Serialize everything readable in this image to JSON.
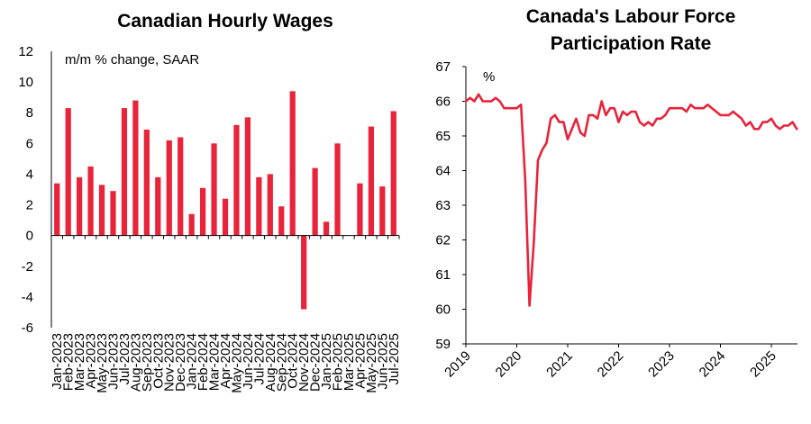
{
  "chart_data": [
    {
      "type": "bar",
      "title": "Canadian Hourly Wages",
      "annotation": "m/m % change, SAAR",
      "color": "#e8233a",
      "ylim": [
        -6,
        12
      ],
      "yticks": [
        "-6",
        "-4",
        "-2",
        "0",
        "2",
        "4",
        "6",
        "8",
        "10",
        "12"
      ],
      "categories": [
        "Jan-2023",
        "Feb-2023",
        "Mar-2023",
        "Apr-2023",
        "May-2023",
        "Jun-2023",
        "Jul-2023",
        "Aug-2023",
        "Sep-2023",
        "Oct-2023",
        "Nov-2023",
        "Dec-2023",
        "Jan-2024",
        "Feb-2024",
        "Mar-2024",
        "Apr-2024",
        "May-2024",
        "Jun-2024",
        "Jul-2024",
        "Aug-2024",
        "Sep-2024",
        "Oct-2024",
        "Nov-2024",
        "Dec-2024",
        "Jan-2025",
        "Feb-2025",
        "Mar-2025",
        "Apr-2025",
        "May-2025",
        "Jun-2025",
        "Jul-2025"
      ],
      "values": [
        3.4,
        8.3,
        3.8,
        4.5,
        3.3,
        2.9,
        8.3,
        8.8,
        6.9,
        3.8,
        6.2,
        6.4,
        1.4,
        3.1,
        6.0,
        2.4,
        7.2,
        7.7,
        3.8,
        4.0,
        1.9,
        9.4,
        -4.8,
        4.4,
        0.9,
        6.0,
        0.0,
        3.4,
        7.1,
        3.2,
        8.1
      ],
      "grid": false
    },
    {
      "type": "line",
      "title": "Canada's Labour Force Participation Rate",
      "title_lines": [
        "Canada's Labour Force",
        "Participation Rate"
      ],
      "unit_label": "%",
      "color": "#e8233a",
      "ylim": [
        59,
        67
      ],
      "yticks": [
        "59",
        "60",
        "61",
        "62",
        "63",
        "64",
        "65",
        "66",
        "67"
      ],
      "xticks": [
        "2019",
        "2020",
        "2021",
        "2022",
        "2023",
        "2024",
        "2025"
      ],
      "x_start": "2019-01",
      "x": [
        "2019-01",
        "2019-02",
        "2019-03",
        "2019-04",
        "2019-05",
        "2019-06",
        "2019-07",
        "2019-08",
        "2019-09",
        "2019-10",
        "2019-11",
        "2019-12",
        "2020-01",
        "2020-02",
        "2020-03",
        "2020-04",
        "2020-05",
        "2020-06",
        "2020-07",
        "2020-08",
        "2020-09",
        "2020-10",
        "2020-11",
        "2020-12",
        "2021-01",
        "2021-02",
        "2021-03",
        "2021-04",
        "2021-05",
        "2021-06",
        "2021-07",
        "2021-08",
        "2021-09",
        "2021-10",
        "2021-11",
        "2021-12",
        "2022-01",
        "2022-02",
        "2022-03",
        "2022-04",
        "2022-05",
        "2022-06",
        "2022-07",
        "2022-08",
        "2022-09",
        "2022-10",
        "2022-11",
        "2022-12",
        "2023-01",
        "2023-02",
        "2023-03",
        "2023-04",
        "2023-05",
        "2023-06",
        "2023-07",
        "2023-08",
        "2023-09",
        "2023-10",
        "2023-11",
        "2023-12",
        "2024-01",
        "2024-02",
        "2024-03",
        "2024-04",
        "2024-05",
        "2024-06",
        "2024-07",
        "2024-08",
        "2024-09",
        "2024-10",
        "2024-11",
        "2024-12",
        "2025-01",
        "2025-02",
        "2025-03",
        "2025-04",
        "2025-05",
        "2025-06",
        "2025-07"
      ],
      "values": [
        66.0,
        66.1,
        66.0,
        66.2,
        66.0,
        66.0,
        66.0,
        66.1,
        66.0,
        65.8,
        65.8,
        65.8,
        65.8,
        65.9,
        63.7,
        60.1,
        61.9,
        64.3,
        64.6,
        64.8,
        65.5,
        65.6,
        65.4,
        65.4,
        64.9,
        65.2,
        65.5,
        65.1,
        65.0,
        65.6,
        65.6,
        65.5,
        66.0,
        65.6,
        65.8,
        65.8,
        65.4,
        65.7,
        65.6,
        65.7,
        65.7,
        65.4,
        65.3,
        65.4,
        65.3,
        65.5,
        65.5,
        65.6,
        65.8,
        65.8,
        65.8,
        65.8,
        65.7,
        65.9,
        65.8,
        65.8,
        65.8,
        65.9,
        65.8,
        65.7,
        65.6,
        65.6,
        65.6,
        65.7,
        65.6,
        65.5,
        65.3,
        65.4,
        65.2,
        65.2,
        65.4,
        65.4,
        65.5,
        65.3,
        65.2,
        65.3,
        65.3,
        65.4,
        65.2
      ],
      "grid": false
    }
  ]
}
